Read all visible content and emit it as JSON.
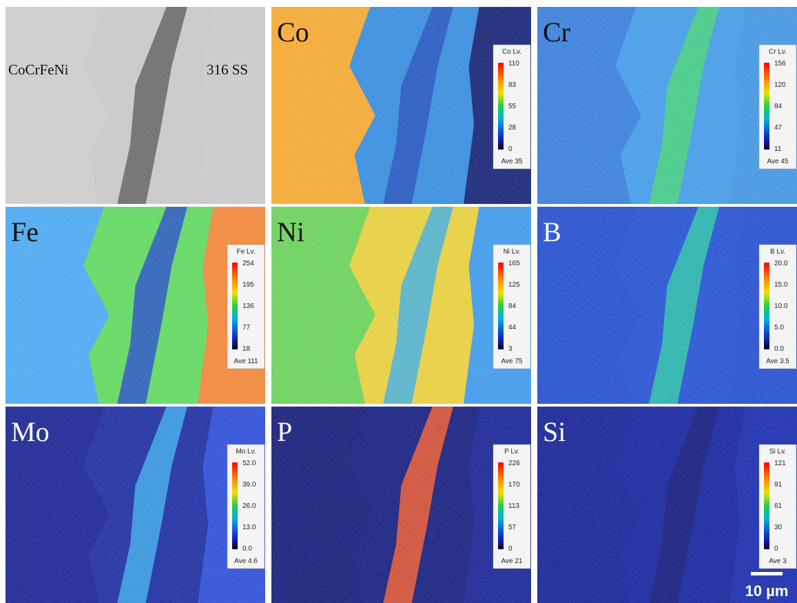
{
  "panels": [
    {
      "label": "CoCrFeNi",
      "label2": "316 SS"
    },
    {
      "label": "Co",
      "legend": {
        "title": "Co Lv.",
        "ticks": [
          "110",
          "83",
          "55",
          "28",
          "0"
        ],
        "ave": "Ave 35"
      }
    },
    {
      "label": "Cr",
      "legend": {
        "title": "Cr Lv.",
        "ticks": [
          "156",
          "120",
          "84",
          "47",
          "11"
        ],
        "ave": "Ave 45"
      }
    },
    {
      "label": "Fe",
      "legend": {
        "title": "Fe Lv.",
        "ticks": [
          "254",
          "195",
          "136",
          "77",
          "18"
        ],
        "ave": "Ave 111"
      }
    },
    {
      "label": "Ni",
      "legend": {
        "title": "Ni Lv.",
        "ticks": [
          "165",
          "125",
          "84",
          "44",
          "3"
        ],
        "ave": "Ave 75"
      }
    },
    {
      "label": "B",
      "legend": {
        "title": "B Lv.",
        "ticks": [
          "20.0",
          "15.0",
          "10.0",
          "5.0",
          "0.0"
        ],
        "ave": "Ave 3.5"
      }
    },
    {
      "label": "Mo",
      "legend": {
        "title": "Mo Lv.",
        "ticks": [
          "52.0",
          "39.0",
          "26.0",
          "13.0",
          "0.0"
        ],
        "ave": "Ave 4.6"
      }
    },
    {
      "label": "P",
      "legend": {
        "title": "P Lv.",
        "ticks": [
          "226",
          "170",
          "113",
          "57",
          "0"
        ],
        "ave": "Ave 21"
      }
    },
    {
      "label": "Si",
      "legend": {
        "title": "Si Lv.",
        "ticks": [
          "121",
          "91",
          "61",
          "30",
          "0"
        ],
        "ave": "Ave 3"
      }
    }
  ],
  "scale_bar": "10 µm"
}
